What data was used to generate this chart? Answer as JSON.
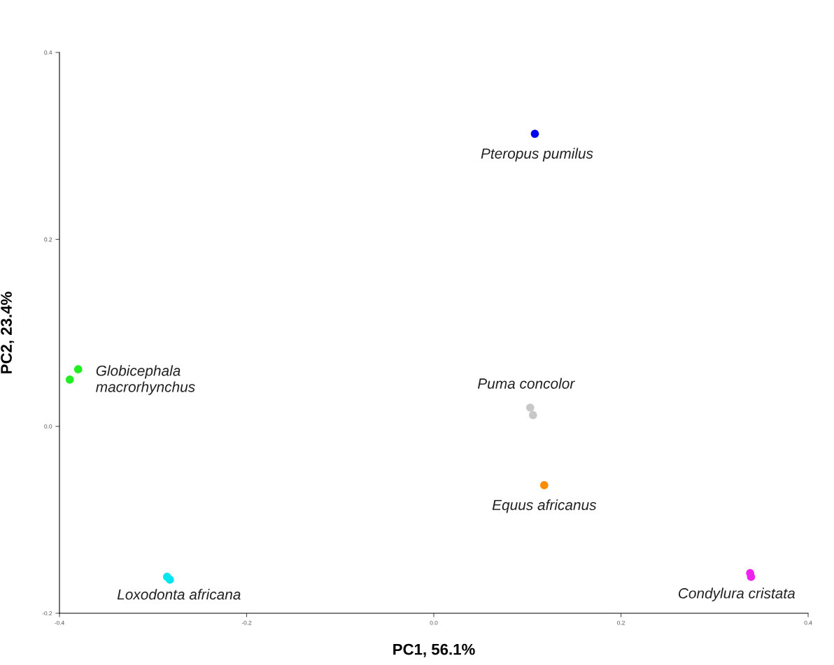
{
  "chart_data": {
    "type": "scatter",
    "xlabel": "PC1, 56.1%",
    "ylabel": "PC2, 23.4%",
    "xlim": [
      -0.4,
      0.4
    ],
    "ylim": [
      -0.2,
      0.4
    ],
    "xticks": [
      -0.4,
      -0.2,
      {
        "value": 0.0,
        "label": "0.0"
      },
      0.2,
      0.4
    ],
    "yticks": [
      -0.2,
      {
        "value": 0.0,
        "label": "0.0"
      },
      0.2,
      0.4
    ],
    "grid": false,
    "marker": "circle",
    "series": [
      {
        "name": "Pteropus pumilus",
        "color": "#0000ee",
        "x": [
          0.108
        ],
        "values": [
          0.313
        ]
      },
      {
        "name": "Globicephala macrorhynchus",
        "color": "#22ee22",
        "x": [
          -0.389,
          -0.38
        ],
        "values": [
          0.05,
          0.061
        ]
      },
      {
        "name": "Puma concolor",
        "color": "#c8c8c8",
        "x": [
          0.103,
          0.106
        ],
        "values": [
          0.02,
          0.012
        ]
      },
      {
        "name": "Equus africanus",
        "color": "#ff8c00",
        "x": [
          0.118
        ],
        "values": [
          -0.063
        ]
      },
      {
        "name": "Loxodonta africana",
        "color": "#00e5ee",
        "x": [
          -0.285,
          -0.282
        ],
        "values": [
          -0.161,
          -0.164
        ]
      },
      {
        "name": "Condylura cristata",
        "color": "#ee22ee",
        "x": [
          0.338,
          0.339
        ],
        "values": [
          -0.157,
          -0.161
        ]
      }
    ]
  }
}
